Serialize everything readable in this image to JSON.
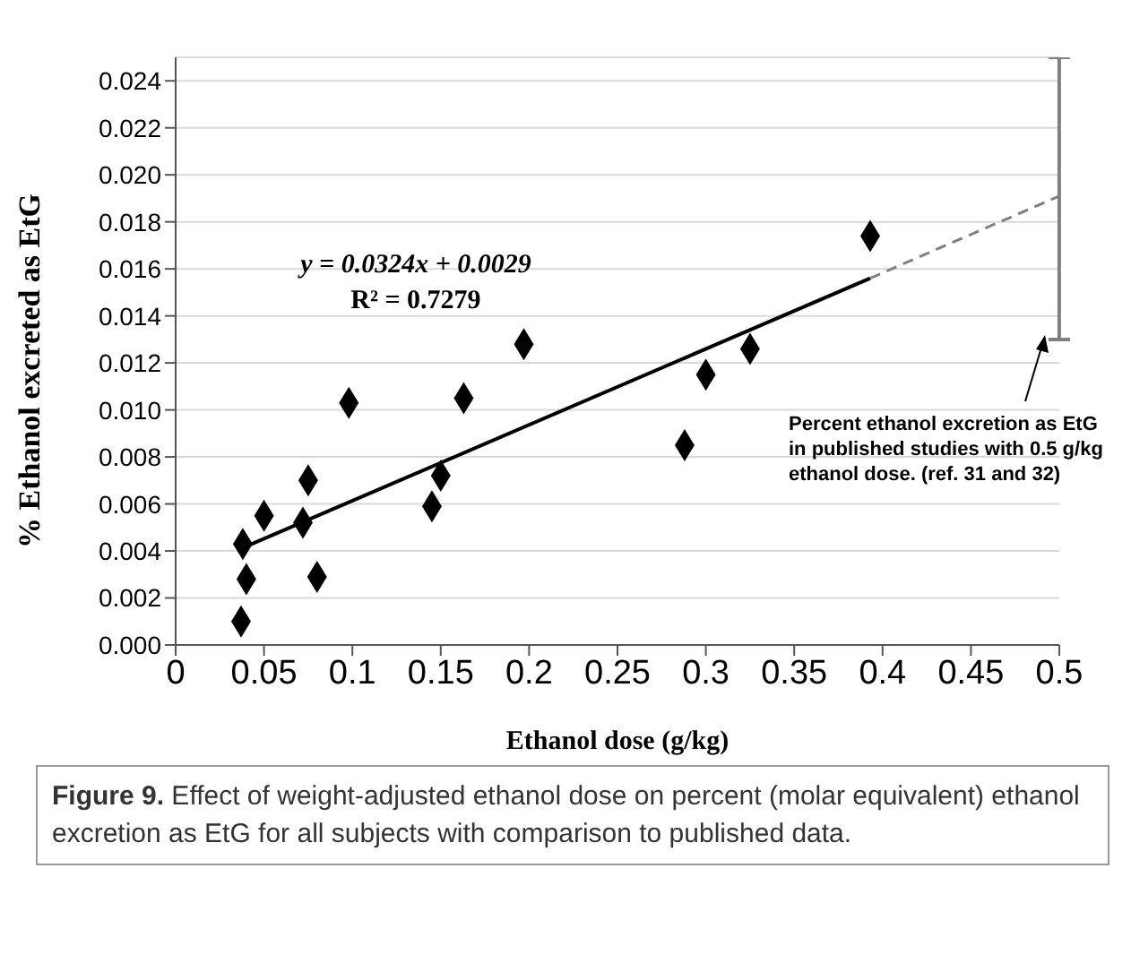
{
  "chart_data": {
    "type": "scatter",
    "xlabel": "Ethanol dose (g/kg)",
    "ylabel": "% Ethanol excreted as EtG",
    "xlim": [
      0,
      0.5
    ],
    "xticks": [
      0,
      0.05,
      0.1,
      0.15,
      0.2,
      0.25,
      0.3,
      0.35,
      0.4,
      0.45,
      0.5
    ],
    "ylim": [
      0,
      0.025
    ],
    "yticks": [
      {
        "value": 0,
        "label": "0.000"
      },
      0.002,
      0.004,
      0.006,
      0.008,
      {
        "value": 0.01,
        "label": "0.010"
      },
      0.012,
      0.014,
      0.016,
      0.018,
      {
        "value": 0.02,
        "label": "0.020"
      },
      0.022,
      0.024
    ],
    "grid": "y",
    "marker": "diamond",
    "series": [
      {
        "color": "#000000",
        "x": [
          0.037,
          0.038,
          0.04,
          0.05,
          0.072,
          0.075,
          0.08,
          0.098,
          0.145,
          0.15,
          0.163,
          0.197,
          0.288,
          0.3,
          0.325,
          0.393
        ],
        "values": [
          0.001,
          0.0043,
          0.0028,
          0.0055,
          0.0052,
          0.007,
          0.0029,
          0.0103,
          0.0059,
          0.0072,
          0.0105,
          0.0128,
          0.0085,
          0.0115,
          0.0126,
          0.0174
        ]
      },
      {
        "type": "line",
        "color": "#000000",
        "line_style": "solid",
        "marker": "none",
        "x": [
          0.037,
          0.393
        ],
        "values": [
          0.0041,
          0.0156
        ]
      },
      {
        "type": "line",
        "color": "#808080",
        "line_style": "dashed",
        "marker": "none",
        "x": [
          0.393,
          0.5
        ],
        "values": [
          0.0156,
          0.0191
        ]
      },
      {
        "type": "bar",
        "color": "#808080",
        "x": [
          0.5
        ],
        "base": [
          0.013
        ],
        "values": [
          0.012
        ]
      }
    ],
    "annotations": [
      "y = 0.0324x + 0.0029",
      "R² = 0.7279",
      "Percent ethanol excretion as EtG in published studies with 0.5 g/kg ethanol dose. (ref. 31 and 32)",
      "Figure 9. Effect of weight-adjusted ethanol dose on percent (molar equivalent) ethanol excretion as EtG for all subjects with comparison to published data."
    ]
  }
}
